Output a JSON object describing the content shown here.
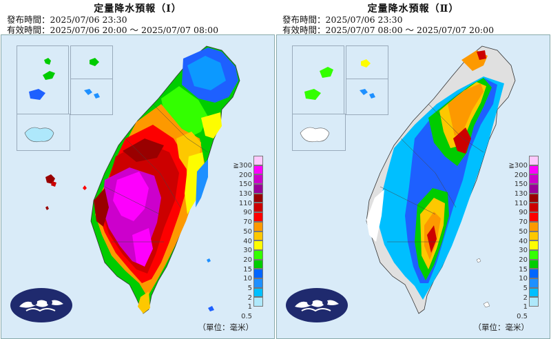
{
  "panels": [
    {
      "title": "定量降水預報（Ⅰ）",
      "issued": "發布時間：2025/07/06 23:30",
      "valid": "有效時間：2025/07/06 20:00 ～ 2025/07/07 08:00",
      "unit": "（單位：毫米）"
    },
    {
      "title": "定量降水預報（Ⅱ）",
      "issued": "發布時間：2025/07/06 23:30",
      "valid": "有效時間：2025/07/07 08:00 ～ 2025/07/07 20:00",
      "unit": "（單位：毫米）"
    }
  ],
  "legend": {
    "labels": [
      "≧300",
      "200",
      "150",
      "130",
      "110",
      "90",
      "70",
      "50",
      "40",
      "30",
      "20",
      "15",
      "10",
      "5",
      "2",
      "1",
      "0.5"
    ],
    "colors": [
      "#fdc9fd",
      "#fd00fd",
      "#cc00cc",
      "#990099",
      "#990000",
      "#cc0000",
      "#fd0000",
      "#fd9900",
      "#fdc800",
      "#fdfd00",
      "#33ff00",
      "#00cc00",
      "#0066ff",
      "#1e90ff",
      "#00bfff",
      "#aee8fb",
      "#c0c0c0"
    ]
  },
  "logo_icon": "cwa-cloud-logo-icon"
}
